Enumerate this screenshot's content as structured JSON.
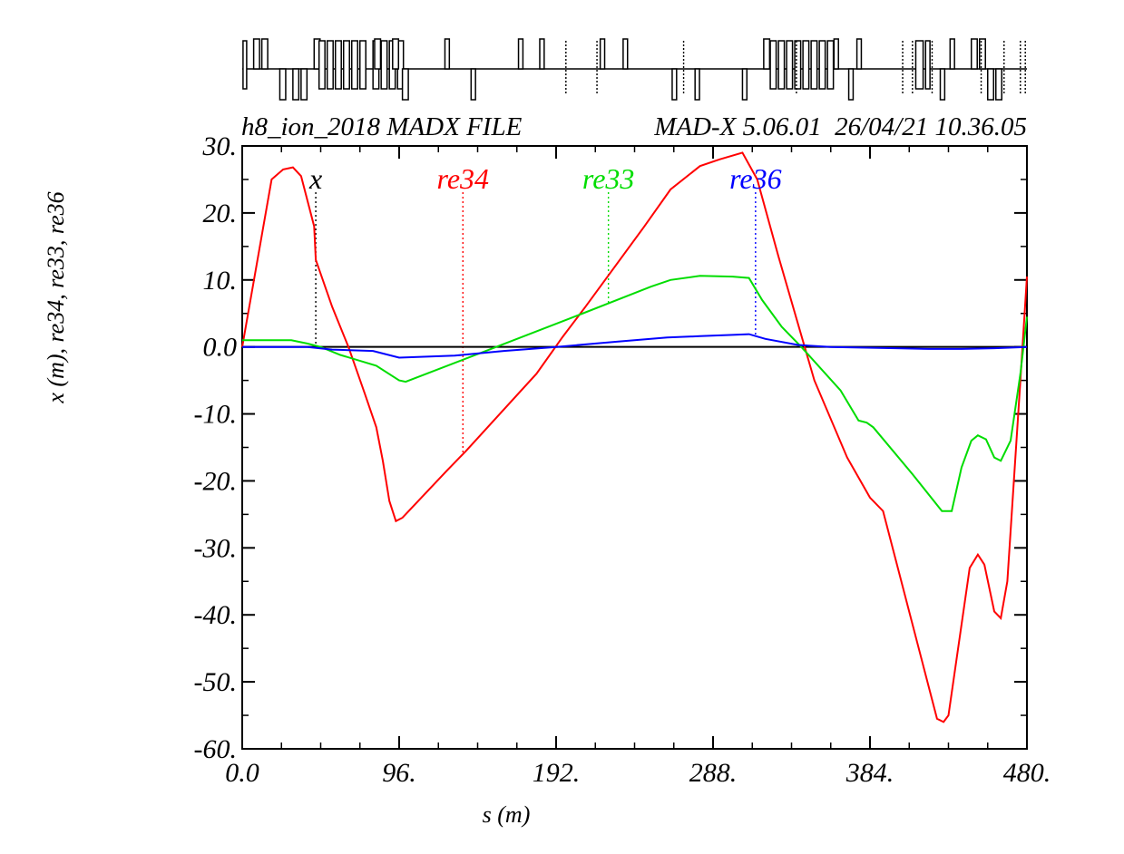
{
  "chart_data": {
    "type": "line",
    "header": {
      "left": "h8_ion_2018 MADX FILE",
      "right": "MAD-X 5.06.01  26/04/21 10.36.05"
    },
    "xlabel": "s (m)",
    "ylabel": "x (m), re34, re33, re36",
    "xlim": [
      0,
      480
    ],
    "ylim": [
      -60,
      30
    ],
    "x_ticks": [
      {
        "value": 0,
        "label": "0.0"
      },
      {
        "value": 96,
        "label": "96."
      },
      {
        "value": 192,
        "label": "192."
      },
      {
        "value": 288,
        "label": "288."
      },
      {
        "value": 384,
        "label": "384."
      },
      {
        "value": 480,
        "label": "480."
      }
    ],
    "y_ticks": [
      {
        "value": 30,
        "label": "30."
      },
      {
        "value": 20,
        "label": "20."
      },
      {
        "value": 10,
        "label": "10."
      },
      {
        "value": 0,
        "label": "0.0"
      },
      {
        "value": -10,
        "label": "-10."
      },
      {
        "value": -20,
        "label": "-20."
      },
      {
        "value": -30,
        "label": "-30."
      },
      {
        "value": -40,
        "label": "-40."
      },
      {
        "value": -50,
        "label": "-50."
      },
      {
        "value": -60,
        "label": "-60."
      }
    ],
    "grid": false,
    "series": [
      {
        "name": "x",
        "color": "#000000",
        "label_x": 45,
        "points": [
          [
            0,
            0
          ],
          [
            480,
            0
          ]
        ]
      },
      {
        "name": "re34",
        "color": "#ff0000",
        "label_x": 135,
        "points": [
          [
            0,
            0
          ],
          [
            18,
            25
          ],
          [
            25,
            26.5
          ],
          [
            31,
            26.8
          ],
          [
            36,
            25.5
          ],
          [
            44,
            18
          ],
          [
            45,
            13
          ],
          [
            55,
            6
          ],
          [
            65,
            0
          ],
          [
            75,
            -7
          ],
          [
            82,
            -12
          ],
          [
            86,
            -17
          ],
          [
            90,
            -23
          ],
          [
            94,
            -26
          ],
          [
            98,
            -25.5
          ],
          [
            125,
            -18.5
          ],
          [
            137,
            -15.5
          ],
          [
            180,
            -4
          ],
          [
            196,
            1.5
          ],
          [
            210,
            6
          ],
          [
            246,
            18
          ],
          [
            262,
            23.5
          ],
          [
            280,
            27
          ],
          [
            292,
            28
          ],
          [
            306,
            29
          ],
          [
            315,
            25
          ],
          [
            328,
            13.5
          ],
          [
            350,
            -5
          ],
          [
            370,
            -16.5
          ],
          [
            384,
            -22.5
          ],
          [
            392,
            -24.5
          ],
          [
            425,
            -55.5
          ],
          [
            429,
            -56
          ],
          [
            432,
            -55
          ],
          [
            445,
            -33
          ],
          [
            450,
            -31
          ],
          [
            454,
            -32.5
          ],
          [
            460,
            -39.5
          ],
          [
            464,
            -40.5
          ],
          [
            468,
            -35
          ],
          [
            476,
            -5
          ],
          [
            480,
            10.5
          ]
        ]
      },
      {
        "name": "re33",
        "color": "#00dd00",
        "label_x": 224,
        "points": [
          [
            0,
            1
          ],
          [
            30,
            1
          ],
          [
            40,
            0.5
          ],
          [
            48,
            0
          ],
          [
            60,
            -1.2
          ],
          [
            82,
            -2.8
          ],
          [
            96,
            -5
          ],
          [
            100,
            -5.2
          ],
          [
            150,
            -0.5
          ],
          [
            200,
            4.2
          ],
          [
            250,
            9
          ],
          [
            262,
            10
          ],
          [
            280,
            10.6
          ],
          [
            300,
            10.5
          ],
          [
            310,
            10.3
          ],
          [
            318,
            7
          ],
          [
            330,
            3
          ],
          [
            342,
            0
          ],
          [
            366,
            -6.5
          ],
          [
            377,
            -11
          ],
          [
            382,
            -11.3
          ],
          [
            386,
            -12
          ],
          [
            410,
            -19
          ],
          [
            428,
            -24.5
          ],
          [
            434,
            -24.5
          ],
          [
            440,
            -18
          ],
          [
            446,
            -14
          ],
          [
            450,
            -13.2
          ],
          [
            455,
            -13.8
          ],
          [
            460,
            -16.5
          ],
          [
            464,
            -17
          ],
          [
            470,
            -14
          ],
          [
            476,
            -4
          ],
          [
            480,
            4.5
          ]
        ]
      },
      {
        "name": "re36",
        "color": "#0000ff",
        "label_x": 314,
        "points": [
          [
            0,
            0
          ],
          [
            40,
            0
          ],
          [
            55,
            -0.4
          ],
          [
            80,
            -0.6
          ],
          [
            96,
            -1.6
          ],
          [
            130,
            -1.3
          ],
          [
            160,
            -0.6
          ],
          [
            192,
            0
          ],
          [
            230,
            0.8
          ],
          [
            260,
            1.4
          ],
          [
            280,
            1.6
          ],
          [
            300,
            1.8
          ],
          [
            310,
            1.9
          ],
          [
            320,
            1.2
          ],
          [
            340,
            0.3
          ],
          [
            360,
            0
          ],
          [
            400,
            -0.2
          ],
          [
            420,
            -0.3
          ],
          [
            440,
            -0.3
          ],
          [
            460,
            -0.2
          ],
          [
            480,
            0
          ]
        ]
      }
    ]
  },
  "layout_elements": [
    {
      "type": "block",
      "x": 0.5,
      "w": 1.5,
      "h": 12,
      "side": "both"
    },
    {
      "type": "bar",
      "x": 7,
      "w": 4,
      "side": "top"
    },
    {
      "type": "bar",
      "x": 12,
      "w": 4,
      "side": "top"
    },
    {
      "type": "bar",
      "x": 23,
      "w": 4,
      "side": "bottom"
    },
    {
      "type": "bar",
      "x": 31,
      "w": 4,
      "side": "bottom"
    },
    {
      "type": "bar",
      "x": 36,
      "w": 4,
      "side": "bottom"
    },
    {
      "type": "bar",
      "x": 44,
      "w": 4,
      "side": "top"
    },
    {
      "type": "bar",
      "x": 47,
      "w": 4,
      "side": "both"
    },
    {
      "type": "bar",
      "x": 52,
      "w": 4,
      "side": "both"
    },
    {
      "type": "bar",
      "x": 57,
      "w": 4,
      "side": "both"
    },
    {
      "type": "bar",
      "x": 62,
      "w": 4,
      "side": "both"
    },
    {
      "type": "bar",
      "x": 67,
      "w": 4,
      "side": "both"
    },
    {
      "type": "bar",
      "x": 72,
      "w": 4,
      "side": "both"
    },
    {
      "type": "bar",
      "x": 80,
      "w": 4,
      "side": "both"
    },
    {
      "type": "bar",
      "x": 85,
      "w": 4,
      "side": "both"
    },
    {
      "type": "bar",
      "x": 90,
      "w": 4,
      "side": "both"
    },
    {
      "type": "bar",
      "x": 95,
      "w": 4,
      "side": "both"
    },
    {
      "type": "bar",
      "x": 81,
      "w": 4,
      "side": "top"
    },
    {
      "type": "bar",
      "x": 92,
      "w": 4,
      "side": "top"
    },
    {
      "type": "bar",
      "x": 98,
      "w": 4,
      "side": "bottom"
    },
    {
      "type": "bar",
      "x": 124,
      "w": 3,
      "side": "top"
    },
    {
      "type": "bar",
      "x": 140,
      "w": 3,
      "side": "bottom"
    },
    {
      "type": "bar",
      "x": 169,
      "w": 3,
      "side": "top"
    },
    {
      "type": "bar",
      "x": 182,
      "w": 3,
      "side": "top"
    },
    {
      "type": "dots",
      "x": 198,
      "side": "both"
    },
    {
      "type": "bar",
      "x": 219,
      "w": 3,
      "side": "top"
    },
    {
      "type": "bar",
      "x": 233,
      "w": 3,
      "side": "top"
    },
    {
      "type": "dots",
      "x": 217,
      "side": "both"
    },
    {
      "type": "dots",
      "x": 270,
      "side": "both"
    },
    {
      "type": "bar",
      "x": 263,
      "w": 3,
      "side": "bottom"
    },
    {
      "type": "bar",
      "x": 277,
      "w": 3,
      "side": "bottom"
    },
    {
      "type": "bar",
      "x": 306,
      "w": 3,
      "side": "bottom"
    },
    {
      "type": "bar",
      "x": 319,
      "w": 4,
      "side": "top"
    },
    {
      "type": "bar",
      "x": 323,
      "w": 4,
      "side": "both"
    },
    {
      "type": "bar",
      "x": 328,
      "w": 4,
      "side": "both"
    },
    {
      "type": "bar",
      "x": 333,
      "w": 4,
      "side": "both"
    },
    {
      "type": "bar",
      "x": 338,
      "w": 4,
      "side": "both"
    },
    {
      "type": "bar",
      "x": 343,
      "w": 4,
      "side": "both"
    },
    {
      "type": "bar",
      "x": 348,
      "w": 4,
      "side": "both"
    },
    {
      "type": "bar",
      "x": 353,
      "w": 4,
      "side": "both"
    },
    {
      "type": "bar",
      "x": 358,
      "w": 4,
      "side": "both"
    },
    {
      "type": "dots",
      "x": 339,
      "side": "both"
    },
    {
      "type": "bar",
      "x": 362,
      "w": 3,
      "side": "top"
    },
    {
      "type": "bar",
      "x": 371,
      "w": 3,
      "side": "bottom"
    },
    {
      "type": "bar",
      "x": 376,
      "w": 3,
      "side": "top"
    },
    {
      "type": "dots",
      "x": 404,
      "side": "both"
    },
    {
      "type": "dots",
      "x": 410,
      "side": "both"
    },
    {
      "type": "bar",
      "x": 412,
      "w": 5,
      "side": "both"
    },
    {
      "type": "bar",
      "x": 418,
      "w": 3,
      "side": "both"
    },
    {
      "type": "dots",
      "x": 422,
      "side": "both"
    },
    {
      "type": "bar",
      "x": 427,
      "w": 3,
      "side": "bottom"
    },
    {
      "type": "bar",
      "x": 433,
      "w": 3,
      "side": "top"
    },
    {
      "type": "bar",
      "x": 446,
      "w": 4,
      "side": "top"
    },
    {
      "type": "bar",
      "x": 451,
      "w": 4,
      "side": "top"
    },
    {
      "type": "dots",
      "x": 452,
      "side": "both"
    },
    {
      "type": "bar",
      "x": 456,
      "w": 4,
      "side": "bottom"
    },
    {
      "type": "bar",
      "x": 461,
      "w": 4,
      "side": "bottom"
    },
    {
      "type": "dots",
      "x": 466,
      "side": "both"
    },
    {
      "type": "dots",
      "x": 476,
      "side": "both"
    },
    {
      "type": "dots",
      "x": 479,
      "side": "both"
    }
  ]
}
